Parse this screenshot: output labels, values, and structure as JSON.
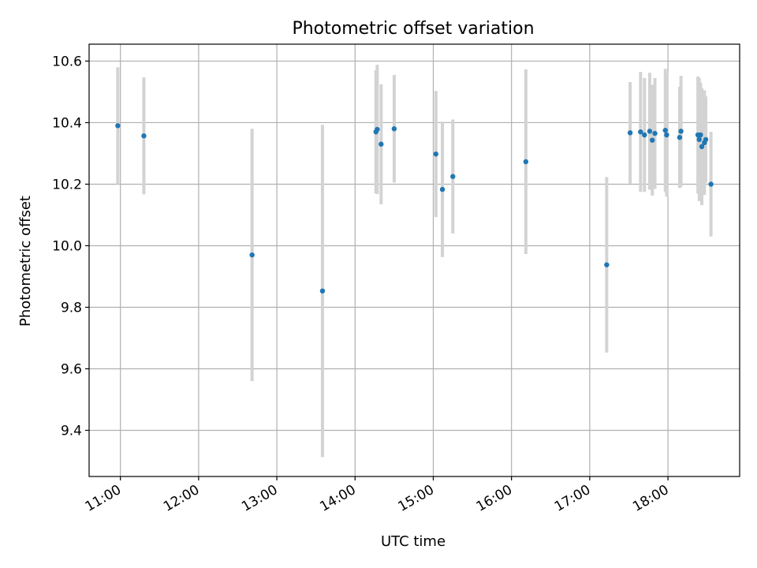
{
  "chart_data": {
    "type": "scatter",
    "title": "Photometric offset variation",
    "xlabel": "UTC time",
    "ylabel": "Photometric offset",
    "x_ticks": [
      "11:00",
      "12:00",
      "13:00",
      "14:00",
      "15:00",
      "16:00",
      "17:00",
      "18:00"
    ],
    "y_ticks": [
      "9.4",
      "9.6",
      "9.8",
      "10.0",
      "10.2",
      "10.4",
      "10.6"
    ],
    "xlim": [
      "10:36",
      "18:55"
    ],
    "ylim": [
      9.25,
      10.655
    ],
    "grid": true,
    "legend": "none",
    "marker_color": "#1f77b4",
    "errorbar_color": "#d3d3d3",
    "points": [
      {
        "x": "10:58",
        "y": 10.39,
        "err": 0.19
      },
      {
        "x": "11:18",
        "y": 10.357,
        "err": 0.19
      },
      {
        "x": "12:41",
        "y": 9.97,
        "err": 0.41
      },
      {
        "x": "13:35",
        "y": 9.853,
        "err": 0.54
      },
      {
        "x": "14:16",
        "y": 10.37,
        "err": 0.2
      },
      {
        "x": "14:17",
        "y": 10.378,
        "err": 0.21
      },
      {
        "x": "14:20",
        "y": 10.33,
        "err": 0.195
      },
      {
        "x": "14:30",
        "y": 10.38,
        "err": 0.175
      },
      {
        "x": "15:02",
        "y": 10.298,
        "err": 0.205
      },
      {
        "x": "15:07",
        "y": 10.183,
        "err": 0.22
      },
      {
        "x": "15:15",
        "y": 10.225,
        "err": 0.185
      },
      {
        "x": "16:11",
        "y": 10.273,
        "err": 0.3
      },
      {
        "x": "17:13",
        "y": 9.938,
        "err": 0.285
      },
      {
        "x": "17:31",
        "y": 10.367,
        "err": 0.165
      },
      {
        "x": "17:39",
        "y": 10.37,
        "err": 0.195
      },
      {
        "x": "17:42",
        "y": 10.36,
        "err": 0.185
      },
      {
        "x": "17:46",
        "y": 10.372,
        "err": 0.19
      },
      {
        "x": "17:48",
        "y": 10.343,
        "err": 0.18
      },
      {
        "x": "17:50",
        "y": 10.365,
        "err": 0.18
      },
      {
        "x": "17:58",
        "y": 10.375,
        "err": 0.2
      },
      {
        "x": "17:59",
        "y": 10.36,
        "err": 0.2
      },
      {
        "x": "18:09",
        "y": 10.352,
        "err": 0.165
      },
      {
        "x": "18:10",
        "y": 10.372,
        "err": 0.18
      },
      {
        "x": "18:23",
        "y": 10.36,
        "err": 0.19
      },
      {
        "x": "18:24",
        "y": 10.345,
        "err": 0.2
      },
      {
        "x": "18:25",
        "y": 10.36,
        "err": 0.17
      },
      {
        "x": "18:26",
        "y": 10.322,
        "err": 0.19
      },
      {
        "x": "18:28",
        "y": 10.335,
        "err": 0.17
      },
      {
        "x": "18:29",
        "y": 10.345,
        "err": 0.14
      },
      {
        "x": "18:33",
        "y": 10.2,
        "err": 0.17
      }
    ]
  }
}
